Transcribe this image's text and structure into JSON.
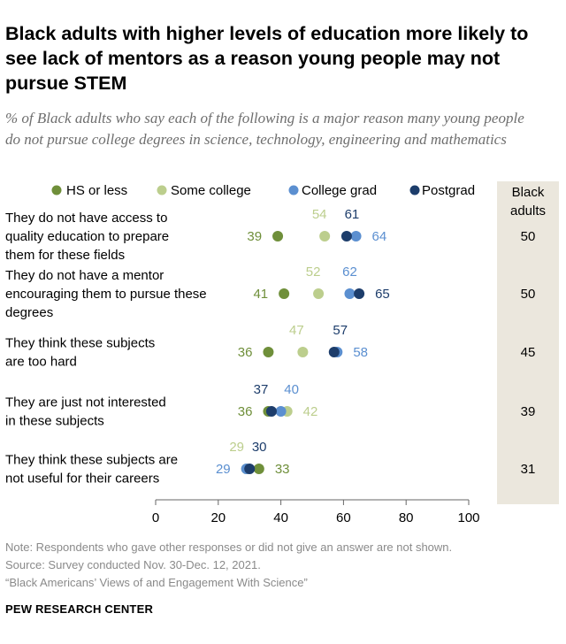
{
  "title": "Black adults with higher levels of education more likely to see lack of mentors as a reason young people may not pursue STEM",
  "subtitle": "% of Black adults who say each of the following is a major reason many young people do not pursue college degrees in science, technology, engineering and mathematics",
  "chart_data": {
    "type": "dot",
    "xlim": [
      0,
      100
    ],
    "ticks": [
      0,
      20,
      40,
      60,
      80,
      100
    ],
    "categories": [
      [
        "They do not have access to",
        "quality education to prepare",
        "them for these fields"
      ],
      [
        "They do not have a mentor",
        "encouraging them to pursue these",
        "degrees"
      ],
      [
        "They think these subjects",
        "are too hard"
      ],
      [
        "They are just not interested",
        "in these subjects"
      ],
      [
        "They think these subjects are",
        "not useful for their careers"
      ]
    ],
    "series": [
      {
        "name": "HS or less",
        "color": "#6f8f3a",
        "values": [
          39,
          41,
          36,
          36,
          33
        ]
      },
      {
        "name": "Some college",
        "color": "#bcce8d",
        "values": [
          54,
          52,
          47,
          42,
          29
        ]
      },
      {
        "name": "College grad",
        "color": "#5b8fd0",
        "values": [
          64,
          62,
          58,
          40,
          29
        ]
      },
      {
        "name": "Postgrad",
        "color": "#1d3d6b",
        "values": [
          61,
          65,
          57,
          37,
          30
        ]
      }
    ],
    "total_header": [
      "Black",
      "adults"
    ],
    "totals": [
      50,
      50,
      45,
      39,
      31
    ]
  },
  "notes": {
    "note": "Note: Respondents who gave other responses or did not give an answer are not shown.",
    "source": "Source: Survey conducted Nov. 30-Dec. 12, 2021.",
    "report": "“Black Americans’ Views of and Engagement With Science”"
  },
  "footer": "PEW RESEARCH CENTER"
}
